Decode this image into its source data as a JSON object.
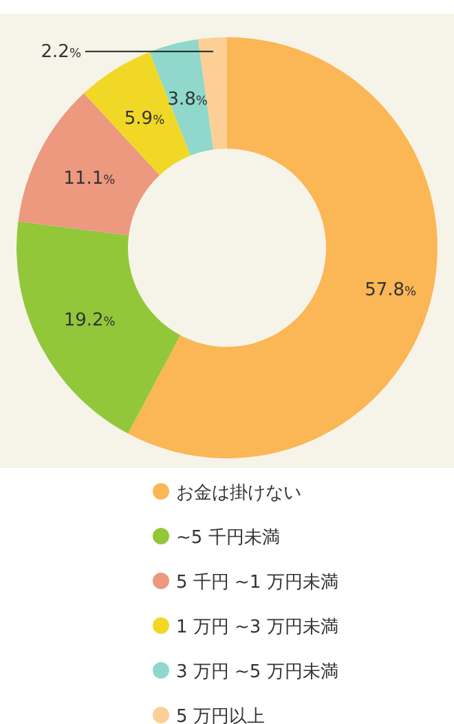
{
  "chart_data": {
    "type": "donut",
    "categories": [
      "お金は掛けない",
      "~5 千円未満",
      "5 千円 ~1 万円未満",
      "1 万円 ~3 万円未満",
      "3 万円 ~5 万円未満",
      "5 万円以上"
    ],
    "values": [
      57.8,
      19.2,
      11.1,
      5.9,
      3.8,
      2.2
    ],
    "value_labels": [
      "57.8%",
      "19.2%",
      "11.1%",
      "5.9%",
      "3.8%",
      "2.2%"
    ],
    "colors": [
      "#fbb656",
      "#92c73a",
      "#ec9980",
      "#f2d826",
      "#8fd8cb",
      "#fccf96"
    ],
    "legend": "bottom"
  }
}
